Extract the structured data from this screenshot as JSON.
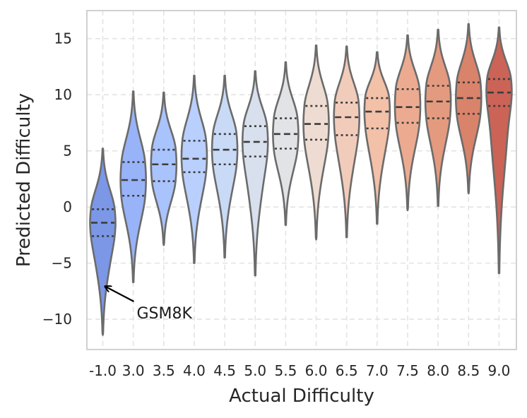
{
  "chart_data": {
    "type": "violin",
    "title": "",
    "xlabel": "Actual Difficulty",
    "ylabel": "Predicted Difficulty",
    "ylim": [
      -12.7,
      17.5
    ],
    "yticks": [
      -10,
      -5,
      0,
      5,
      10,
      15
    ],
    "ytick_labels": [
      "−10",
      "−5",
      "0",
      "5",
      "10",
      "15"
    ],
    "grid": true,
    "categories": [
      "-1.0",
      "3.0",
      "3.5",
      "4.0",
      "4.5",
      "5.0",
      "5.5",
      "6.0",
      "6.5",
      "7.0",
      "7.5",
      "8.0",
      "8.5",
      "9.0"
    ],
    "colors": [
      "#7b97e6",
      "#98b3f8",
      "#a9c3fc",
      "#b9cffd",
      "#c9daf7",
      "#d8e0ee",
      "#e1e3e7",
      "#eedcd2",
      "#f2ccbb",
      "#f3c0a8",
      "#ecab91",
      "#e49a7e",
      "#d9836b",
      "#cb6357"
    ],
    "distributions": [
      {
        "min": -11.4,
        "q1": -2.6,
        "median": -1.4,
        "q3": -0.2,
        "max": 5.2,
        "peak": -1.4
      },
      {
        "min": -6.7,
        "q1": 1.0,
        "median": 2.4,
        "q3": 4.0,
        "max": 10.3,
        "peak": 2.4
      },
      {
        "min": -3.4,
        "q1": 2.3,
        "median": 3.8,
        "q3": 5.1,
        "max": 10.2,
        "peak": 3.8
      },
      {
        "min": -5.0,
        "q1": 3.1,
        "median": 4.3,
        "q3": 5.9,
        "max": 11.7,
        "peak": 4.5
      },
      {
        "min": -4.5,
        "q1": 3.8,
        "median": 5.1,
        "q3": 6.5,
        "max": 11.7,
        "peak": 5.1
      },
      {
        "min": -6.1,
        "q1": 4.5,
        "median": 5.8,
        "q3": 7.2,
        "max": 12.1,
        "peak": 5.8
      },
      {
        "min": -1.6,
        "q1": 5.2,
        "median": 6.5,
        "q3": 7.9,
        "max": 12.9,
        "peak": 6.5
      },
      {
        "min": -2.9,
        "q1": 6.0,
        "median": 7.4,
        "q3": 9.0,
        "max": 14.4,
        "peak": 7.4
      },
      {
        "min": -2.7,
        "q1": 6.4,
        "median": 8.0,
        "q3": 9.3,
        "max": 14.3,
        "peak": 8.0
      },
      {
        "min": -1.5,
        "q1": 7.0,
        "median": 8.5,
        "q3": 9.7,
        "max": 13.8,
        "peak": 8.5
      },
      {
        "min": -0.3,
        "q1": 7.5,
        "median": 8.9,
        "q3": 10.5,
        "max": 15.3,
        "peak": 9.0
      },
      {
        "min": 0.1,
        "q1": 7.9,
        "median": 9.4,
        "q3": 10.8,
        "max": 15.8,
        "peak": 9.4
      },
      {
        "min": 1.2,
        "q1": 8.3,
        "median": 9.7,
        "q3": 11.1,
        "max": 16.3,
        "peak": 9.7
      },
      {
        "min": -5.9,
        "q1": 9.0,
        "median": 10.2,
        "q3": 11.4,
        "max": 16.0,
        "peak": 10.3
      }
    ],
    "annotations": [
      {
        "text": "GSM8K",
        "target_category": "-1.0",
        "target_y": -7.1
      }
    ]
  }
}
